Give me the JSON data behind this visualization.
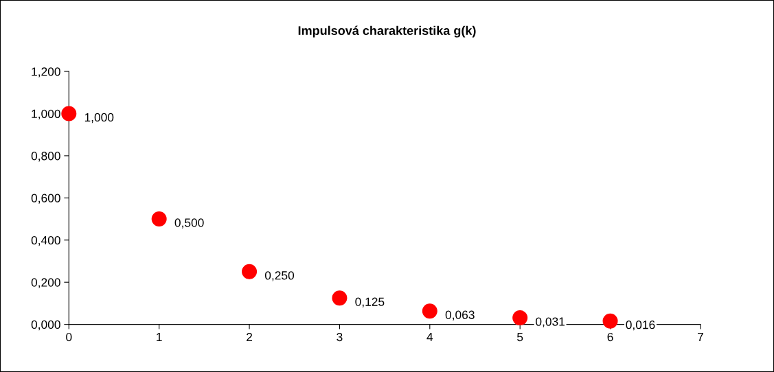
{
  "chart_data": {
    "type": "scatter",
    "title": "Impulsová charakteristika g(k)",
    "x": [
      0,
      1,
      2,
      3,
      4,
      5,
      6
    ],
    "series": [
      {
        "color": "#ff0000",
        "values": [
          1.0,
          0.5,
          0.25,
          0.125,
          0.063,
          0.031,
          0.016
        ],
        "value_labels": [
          "1,000",
          "0,500",
          "0,250",
          "0,125",
          "0,063",
          "0,031",
          "0,016"
        ]
      }
    ],
    "xlim": [
      0,
      7
    ],
    "xticks": [
      0,
      1,
      2,
      3,
      4,
      5,
      6,
      7
    ],
    "ylim": [
      0,
      1.2
    ],
    "yticks": [
      {
        "value": 0,
        "label": "0,000"
      },
      {
        "value": 0.2,
        "label": "0,200"
      },
      {
        "value": 0.4,
        "label": "0,400"
      },
      {
        "value": 0.6,
        "label": "0,600"
      },
      {
        "value": 0.8,
        "label": "0,800"
      },
      {
        "value": 1.0,
        "label": "1,000"
      },
      {
        "value": 1.2,
        "label": "1,200"
      }
    ],
    "marker": "circle",
    "grid": false,
    "legend": false
  }
}
